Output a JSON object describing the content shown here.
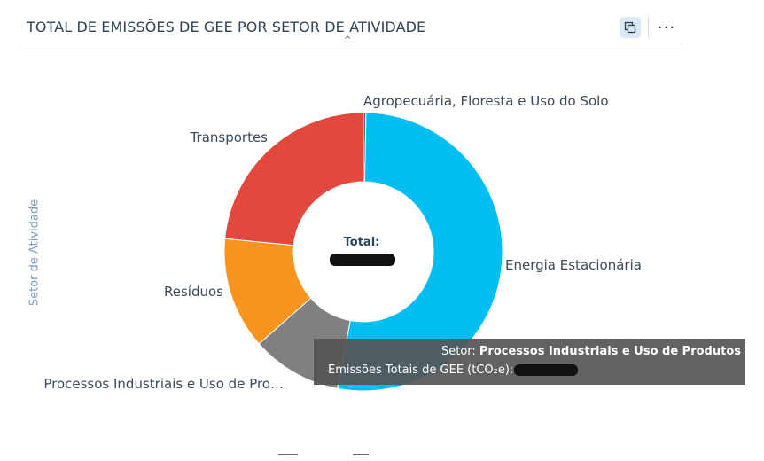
{
  "header": {
    "title": "TOTAL DE EMISSÕES DE GEE POR SETOR DE ATIVIDADE",
    "more_label": "···"
  },
  "chart_data": {
    "type": "pie",
    "ylabel": "Setor de Atividade",
    "center_label": "Total:",
    "slices": [
      {
        "name": "Agropecuária, Floresta e Uso do Solo",
        "value": 0.3,
        "color": "#4f6b8a"
      },
      {
        "name": "Energia Estacionária",
        "value": 52.7,
        "color": "#00bef2"
      },
      {
        "name": "Processos Industriais e Uso de Pro…",
        "value": 10.5,
        "color": "#808080"
      },
      {
        "name": "Resíduos",
        "value": 13.0,
        "color": "#f7951e"
      },
      {
        "name": "Transportes",
        "value": 23.5,
        "color": "#e2483d"
      }
    ]
  },
  "tooltip": {
    "sector_label": "Setor:",
    "sector_value": "Processos Industriais e Uso de Produtos",
    "emissions_label": "Emissões Totais de GEE (tCO₂e):"
  }
}
